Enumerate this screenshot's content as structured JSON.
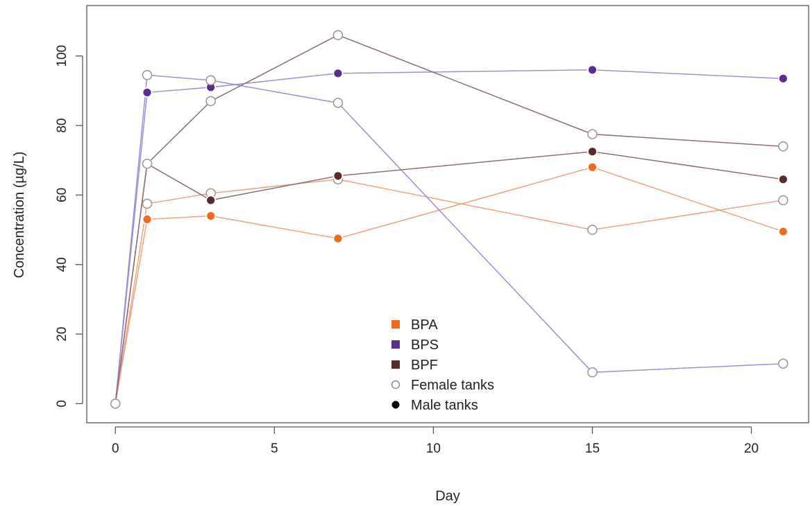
{
  "chart_data": {
    "type": "line",
    "xlabel": "Day",
    "ylabel": "Concentration (µg/L)",
    "xlim": [
      -0.9,
      21.8
    ],
    "ylim": [
      -5.5,
      114.5
    ],
    "x_ticks": [
      0,
      5,
      10,
      15,
      20
    ],
    "y_ticks": [
      0,
      20,
      40,
      60,
      80,
      100
    ],
    "grid": false,
    "legend_position": "bottom-center",
    "legend": [
      {
        "label": "BPA",
        "color": "#f26b1d",
        "marker": "square"
      },
      {
        "label": "BPS",
        "color": "#5b2c8f",
        "marker": "square"
      },
      {
        "label": "BPF",
        "color": "#5a2b2b",
        "marker": "square"
      },
      {
        "label": "Female tanks",
        "color": "#8c8c8c",
        "marker": "open-circle"
      },
      {
        "label": "Male tanks",
        "color": "#000000",
        "marker": "filled-circle"
      }
    ],
    "series": [
      {
        "chemical": "BPA",
        "tank": "male",
        "color": "#f26b1d",
        "line_color": "#f0a27a",
        "filled": true,
        "x": [
          0,
          1,
          3,
          7,
          15,
          21
        ],
        "y": [
          0,
          53,
          54,
          47.5,
          68,
          49.5
        ]
      },
      {
        "chemical": "BPA",
        "tank": "female",
        "color": "#f26b1d",
        "line_color": "#f0a27a",
        "filled": false,
        "x": [
          0,
          1,
          3,
          7,
          15,
          21
        ],
        "y": [
          0,
          57.5,
          60.5,
          64.5,
          50,
          58.5
        ]
      },
      {
        "chemical": "BPS",
        "tank": "male",
        "color": "#5b2c8f",
        "line_color": "#9b8ed6",
        "filled": true,
        "x": [
          0,
          1,
          3,
          7,
          15,
          21
        ],
        "y": [
          0,
          89.5,
          91,
          95,
          96,
          93.5
        ]
      },
      {
        "chemical": "BPS",
        "tank": "female",
        "color": "#5b2c8f",
        "line_color": "#9b8ed6",
        "filled": false,
        "x": [
          0,
          1,
          3,
          7,
          15,
          21
        ],
        "y": [
          0,
          94.5,
          93,
          86.5,
          9,
          11.5
        ]
      },
      {
        "chemical": "BPF",
        "tank": "male",
        "color": "#5a2b2b",
        "line_color": "#8a6e72",
        "filled": true,
        "x": [
          0,
          1,
          3,
          7,
          15,
          21
        ],
        "y": [
          0,
          69,
          58.5,
          65.5,
          72.5,
          64.5
        ]
      },
      {
        "chemical": "BPF",
        "tank": "female",
        "color": "#5a2b2b",
        "line_color": "#8a6e72",
        "filled": false,
        "x": [
          0,
          1,
          3,
          7,
          15,
          21
        ],
        "y": [
          0,
          69,
          87,
          106,
          77.5,
          74
        ]
      }
    ]
  }
}
